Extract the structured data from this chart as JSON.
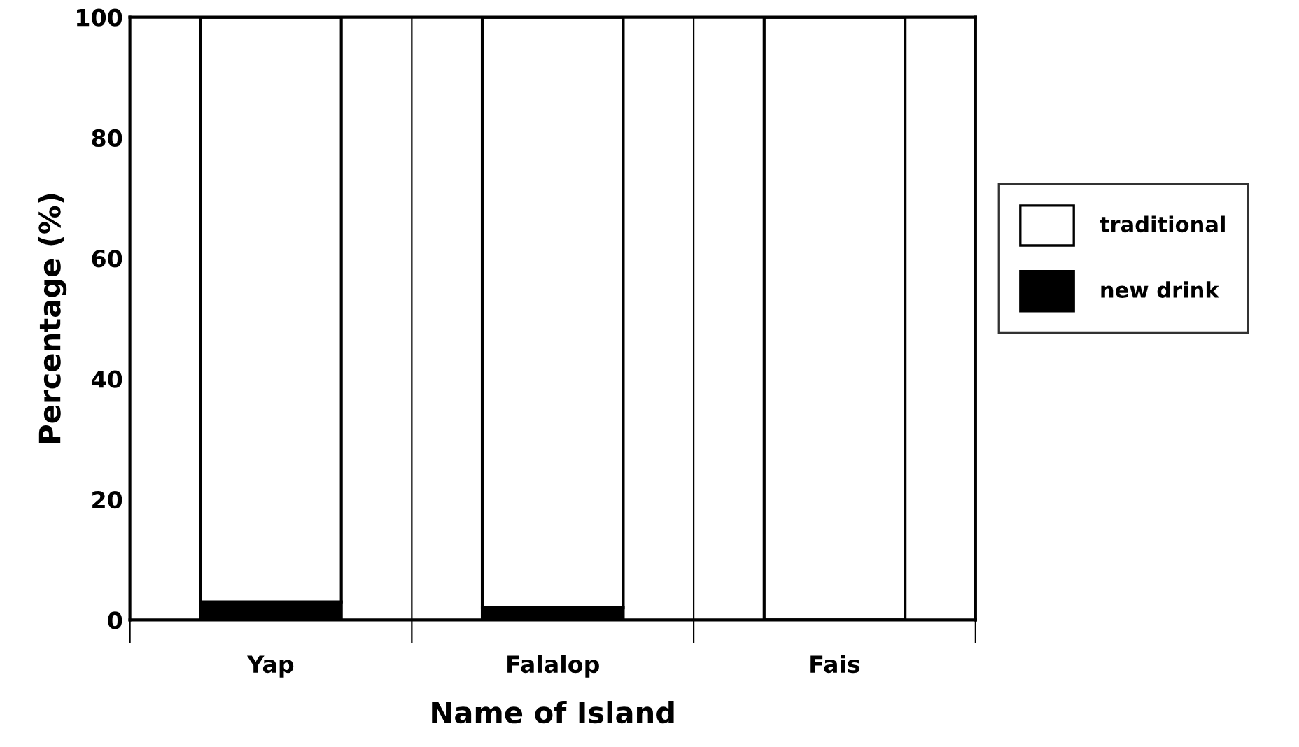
{
  "chart_data": {
    "type": "bar",
    "stacked": true,
    "xlabel": "Name of Island",
    "ylabel": "Percentage (%)",
    "categories": [
      "Yap",
      "Falalop",
      "Fais"
    ],
    "series": [
      {
        "name": "new drink",
        "color": "#000000",
        "values": [
          3,
          2,
          0
        ]
      },
      {
        "name": "traditional",
        "color": "#ffffff",
        "values": [
          97,
          98,
          100
        ]
      }
    ],
    "ylim": [
      0,
      100
    ],
    "yticks": [
      0,
      20,
      40,
      60,
      80,
      100
    ],
    "grid": "x",
    "legend": "right"
  }
}
